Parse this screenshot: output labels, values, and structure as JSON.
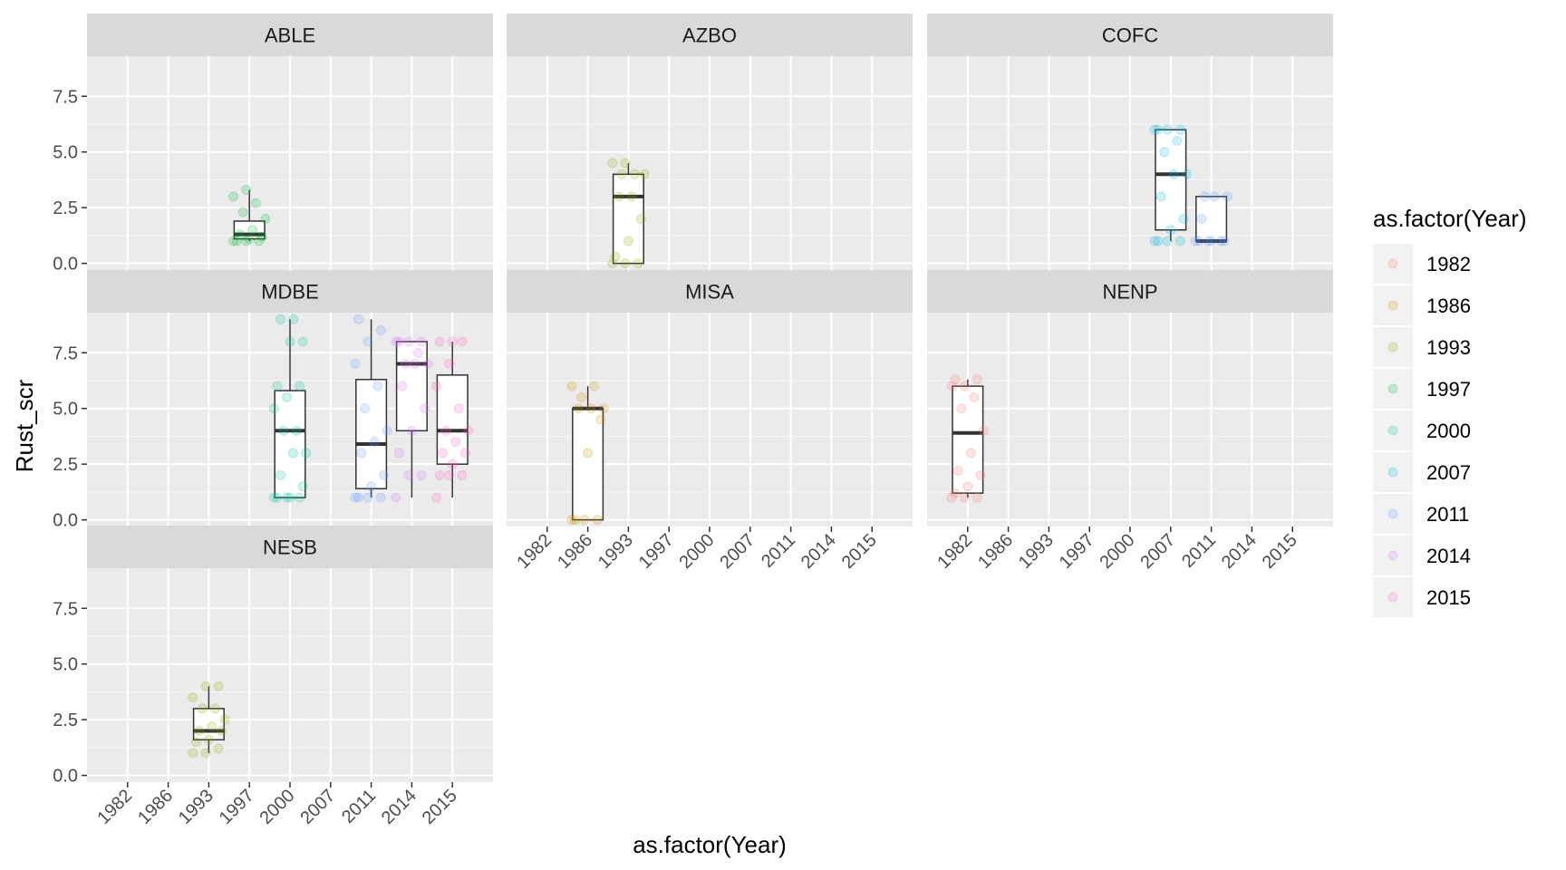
{
  "chart_data": {
    "type": "box",
    "xlabel": "as.factor(Year)",
    "ylabel": "Rust_scr",
    "ylim": [
      -0.3,
      9.3
    ],
    "yticks": [
      0,
      2.5,
      5,
      7.5
    ],
    "ytick_labels": [
      "0.0",
      "2.5",
      "5.0",
      "7.5"
    ],
    "categories": [
      "1982",
      "1986",
      "1993",
      "1997",
      "2000",
      "2007",
      "2011",
      "2014",
      "2015"
    ],
    "legend": {
      "title": "as.factor(Year)",
      "position": "right",
      "entries": [
        {
          "label": "1982",
          "color": "#F8766D"
        },
        {
          "label": "1986",
          "color": "#D39200"
        },
        {
          "label": "1993",
          "color": "#93AA00"
        },
        {
          "label": "1997",
          "color": "#00BA38"
        },
        {
          "label": "2000",
          "color": "#00C19F"
        },
        {
          "label": "2007",
          "color": "#00B9E3"
        },
        {
          "label": "2011",
          "color": "#619CFF"
        },
        {
          "label": "2014",
          "color": "#DB72FB"
        },
        {
          "label": "2015",
          "color": "#FF61C3"
        }
      ]
    },
    "panels": [
      {
        "name": "ABLE",
        "show_x_axis": false,
        "boxes": [
          {
            "year": "1997",
            "min": 1.0,
            "q1": 1.1,
            "median": 1.3,
            "q3": 1.9,
            "max": 3.3,
            "points": [
              1,
              1,
              1,
              1,
              1.1,
              1.2,
              1.3,
              1.5,
              2,
              2.3,
              2.7,
              3,
              3.3
            ]
          }
        ]
      },
      {
        "name": "AZBO",
        "show_x_axis": false,
        "boxes": [
          {
            "year": "1993",
            "min": 0.0,
            "q1": 0.0,
            "median": 3.0,
            "q3": 4.0,
            "max": 4.5,
            "points": [
              0,
              0,
              0,
              0.3,
              1,
              2,
              3,
              3,
              4,
              4,
              4,
              4.5,
              4.5
            ]
          }
        ]
      },
      {
        "name": "COFC",
        "show_x_axis": false,
        "boxes": [
          {
            "year": "2007",
            "min": 1.0,
            "q1": 1.5,
            "median": 4.0,
            "q3": 6.0,
            "max": 6.0,
            "points": [
              1,
              1,
              1,
              1,
              1.5,
              2,
              3,
              4,
              4,
              5,
              5.5,
              6,
              6,
              6,
              6
            ]
          },
          {
            "year": "2011",
            "min": 1.0,
            "q1": 1.0,
            "median": 1.0,
            "q3": 3.0,
            "max": 3.0,
            "points": [
              1,
              1,
              1,
              1,
              1,
              1,
              2,
              3,
              3,
              3
            ]
          }
        ]
      },
      {
        "name": "MDBE",
        "show_x_axis": false,
        "boxes": [
          {
            "year": "2000",
            "min": 1.0,
            "q1": 1.0,
            "median": 4.0,
            "q3": 5.8,
            "max": 9.0,
            "points": [
              1,
              1,
              1,
              1,
              1,
              1.5,
              2,
              3,
              3,
              4,
              4,
              5,
              5.5,
              6,
              6,
              8,
              8,
              9,
              9
            ]
          },
          {
            "year": "2011",
            "min": 1.0,
            "q1": 1.4,
            "median": 3.4,
            "q3": 6.3,
            "max": 9.0,
            "points": [
              1,
              1,
              1,
              1,
              1.5,
              2,
              3,
              3.5,
              4,
              5,
              6,
              7,
              8,
              8.5,
              9
            ]
          },
          {
            "year": "2014",
            "min": 1.0,
            "q1": 4.0,
            "median": 7.0,
            "q3": 8.0,
            "max": 8.0,
            "points": [
              1,
              2,
              2,
              3,
              4,
              5,
              6,
              7,
              7,
              7,
              7.5,
              8,
              8,
              8,
              8
            ]
          },
          {
            "year": "2015",
            "min": 1.0,
            "q1": 2.5,
            "median": 4.0,
            "q3": 6.5,
            "max": 8.0,
            "points": [
              1,
              2,
              2,
              2,
              2.5,
              3,
              3,
              3.5,
              4,
              4,
              5,
              6,
              7,
              8,
              8,
              8
            ]
          }
        ]
      },
      {
        "name": "MISA",
        "show_x_axis": true,
        "boxes": [
          {
            "year": "1986",
            "min": 0.0,
            "q1": 0.0,
            "median": 5.0,
            "q3": 5.0,
            "max": 6.0,
            "points": [
              0,
              0,
              0,
              0,
              3,
              4.5,
              5,
              5,
              5,
              5.5,
              6,
              6
            ]
          }
        ]
      },
      {
        "name": "NENP",
        "show_x_axis": true,
        "boxes": [
          {
            "year": "1982",
            "min": 1.0,
            "q1": 1.2,
            "median": 3.9,
            "q3": 6.0,
            "max": 6.3,
            "points": [
              1,
              1,
              1,
              1.2,
              1.5,
              2,
              2.2,
              3,
              4,
              5,
              5.5,
              6,
              6,
              6.3,
              6.3
            ]
          }
        ]
      },
      {
        "name": "NESB",
        "show_x_axis": true,
        "boxes": [
          {
            "year": "1993",
            "min": 1.0,
            "q1": 1.6,
            "median": 2.0,
            "q3": 3.0,
            "max": 4.0,
            "points": [
              1,
              1,
              1.2,
              1.5,
              1.6,
              2,
              2,
              2.2,
              2.5,
              3,
              3,
              3.5,
              4,
              4
            ]
          }
        ]
      }
    ]
  }
}
